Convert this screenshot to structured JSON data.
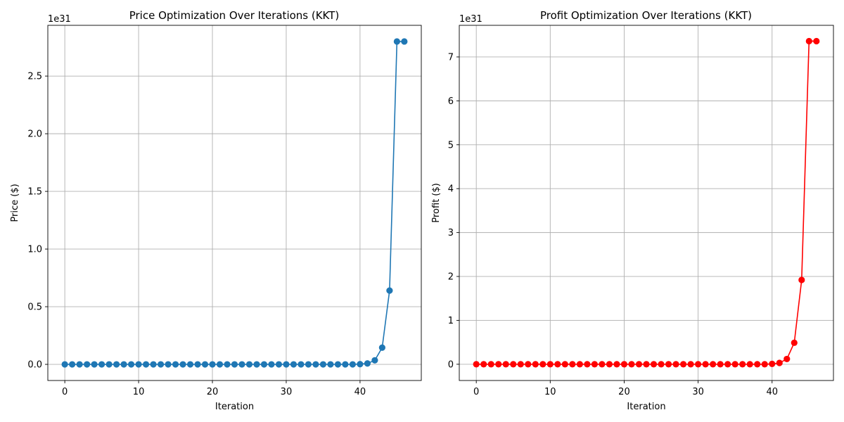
{
  "chart_data": [
    {
      "type": "line",
      "title": "Price Optimization Over Iterations (KKT)",
      "xlabel": "Iteration",
      "ylabel": "Price ($)",
      "y_offset_label": "1e31",
      "color": "#1f77b4",
      "marker": "circle",
      "grid": true,
      "xlim": [
        -2.3,
        48.3
      ],
      "ylim": [
        -0.14,
        2.94
      ],
      "xticks": [
        0,
        10,
        20,
        30,
        40
      ],
      "yticks": [
        0.0,
        0.5,
        1.0,
        1.5,
        2.0,
        2.5
      ],
      "ytick_labels": [
        "0.0",
        "0.5",
        "1.0",
        "1.5",
        "2.0",
        "2.5"
      ],
      "x": [
        0,
        1,
        2,
        3,
        4,
        5,
        6,
        7,
        8,
        9,
        10,
        11,
        12,
        13,
        14,
        15,
        16,
        17,
        18,
        19,
        20,
        21,
        22,
        23,
        24,
        25,
        26,
        27,
        28,
        29,
        30,
        31,
        32,
        33,
        34,
        35,
        36,
        37,
        38,
        39,
        40,
        41,
        42,
        43,
        44,
        45,
        46
      ],
      "y": [
        0,
        0,
        0,
        0,
        0,
        0,
        0,
        0,
        0,
        0,
        0,
        0,
        0,
        0,
        0,
        0,
        0,
        0,
        0,
        0,
        0,
        0,
        0,
        0,
        0,
        0,
        0,
        0,
        0,
        0,
        0,
        0,
        0,
        0,
        0,
        0,
        0,
        0,
        0,
        0,
        0.002,
        0.008,
        0.035,
        0.145,
        0.64,
        2.8,
        2.8
      ]
    },
    {
      "type": "line",
      "title": "Profit Optimization Over Iterations (KKT)",
      "xlabel": "Iteration",
      "ylabel": "Profit ($)",
      "y_offset_label": "1e31",
      "color": "#ff0000",
      "marker": "circle",
      "grid": true,
      "xlim": [
        -2.3,
        48.3
      ],
      "ylim": [
        -0.37,
        7.72
      ],
      "xticks": [
        0,
        10,
        20,
        30,
        40
      ],
      "yticks": [
        0,
        1,
        2,
        3,
        4,
        5,
        6,
        7
      ],
      "ytick_labels": [
        "0",
        "1",
        "2",
        "3",
        "4",
        "5",
        "6",
        "7"
      ],
      "x": [
        0,
        1,
        2,
        3,
        4,
        5,
        6,
        7,
        8,
        9,
        10,
        11,
        12,
        13,
        14,
        15,
        16,
        17,
        18,
        19,
        20,
        21,
        22,
        23,
        24,
        25,
        26,
        27,
        28,
        29,
        30,
        31,
        32,
        33,
        34,
        35,
        36,
        37,
        38,
        39,
        40,
        41,
        42,
        43,
        44,
        45,
        46
      ],
      "y": [
        0,
        0,
        0,
        0,
        0,
        0,
        0,
        0,
        0,
        0,
        0,
        0,
        0,
        0,
        0,
        0,
        0,
        0,
        0,
        0,
        0,
        0,
        0,
        0,
        0,
        0,
        0,
        0,
        0,
        0,
        0,
        0,
        0,
        0,
        0,
        0,
        0,
        0,
        0,
        0,
        0.008,
        0.03,
        0.12,
        0.49,
        1.92,
        7.36,
        7.36
      ]
    }
  ]
}
